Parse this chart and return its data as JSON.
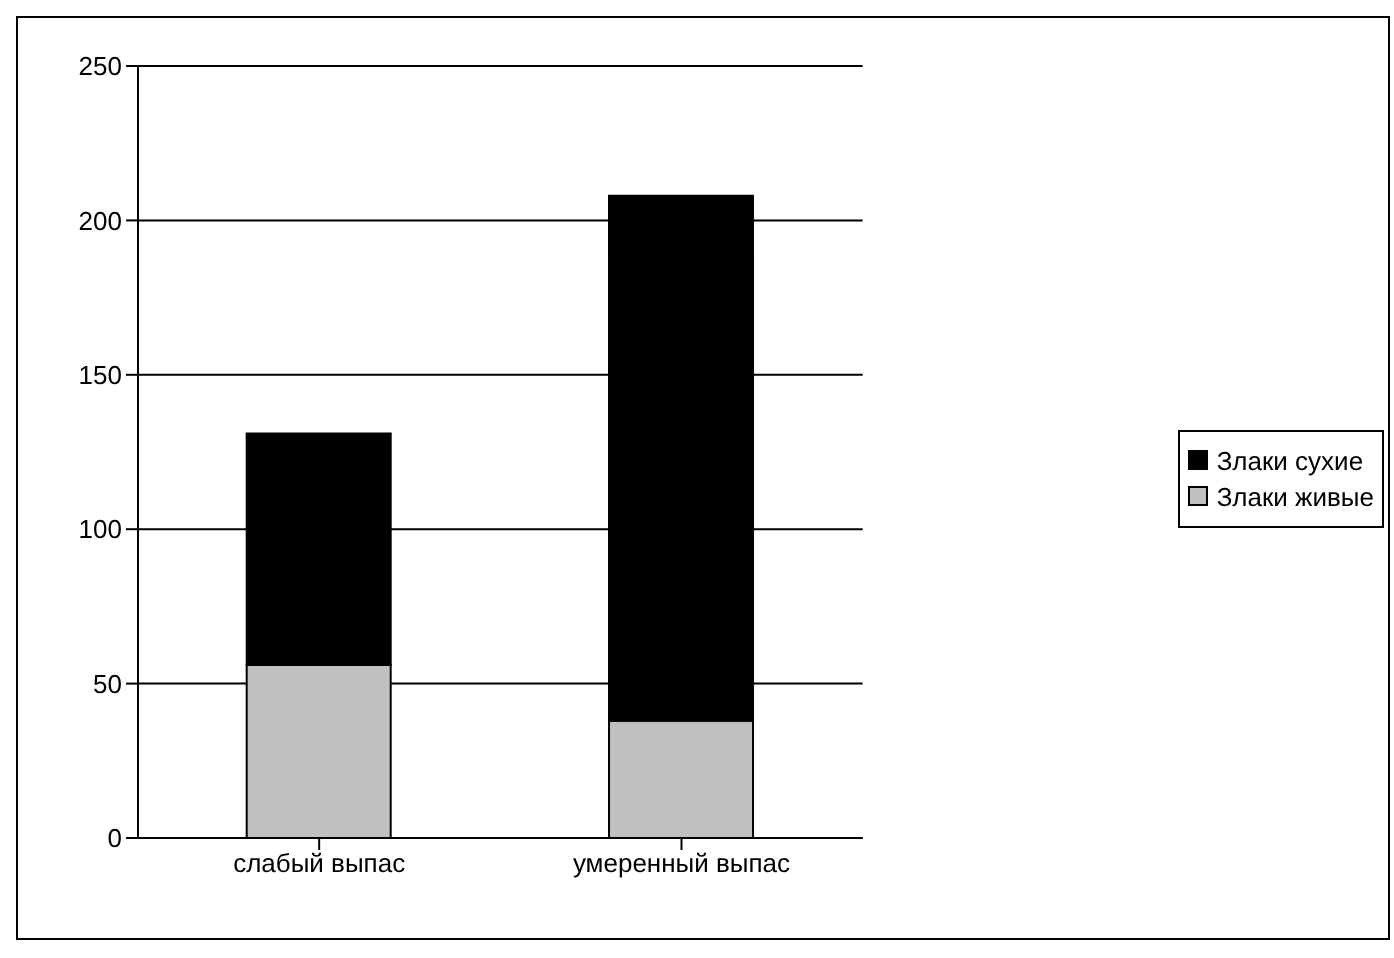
{
  "chart_data": {
    "type": "bar",
    "stacked": true,
    "categories": [
      "слабый выпас",
      "умеренный выпас"
    ],
    "series": [
      {
        "name": "Злаки живые",
        "color": "#c0c0c0",
        "values": [
          56,
          38
        ]
      },
      {
        "name": "Злаки сухие",
        "color": "#000000",
        "values": [
          75,
          170
        ]
      }
    ],
    "ylim": [
      0,
      250
    ],
    "yticks": [
      0,
      50,
      100,
      150,
      200,
      250
    ],
    "grid": "y",
    "legend": "right"
  }
}
